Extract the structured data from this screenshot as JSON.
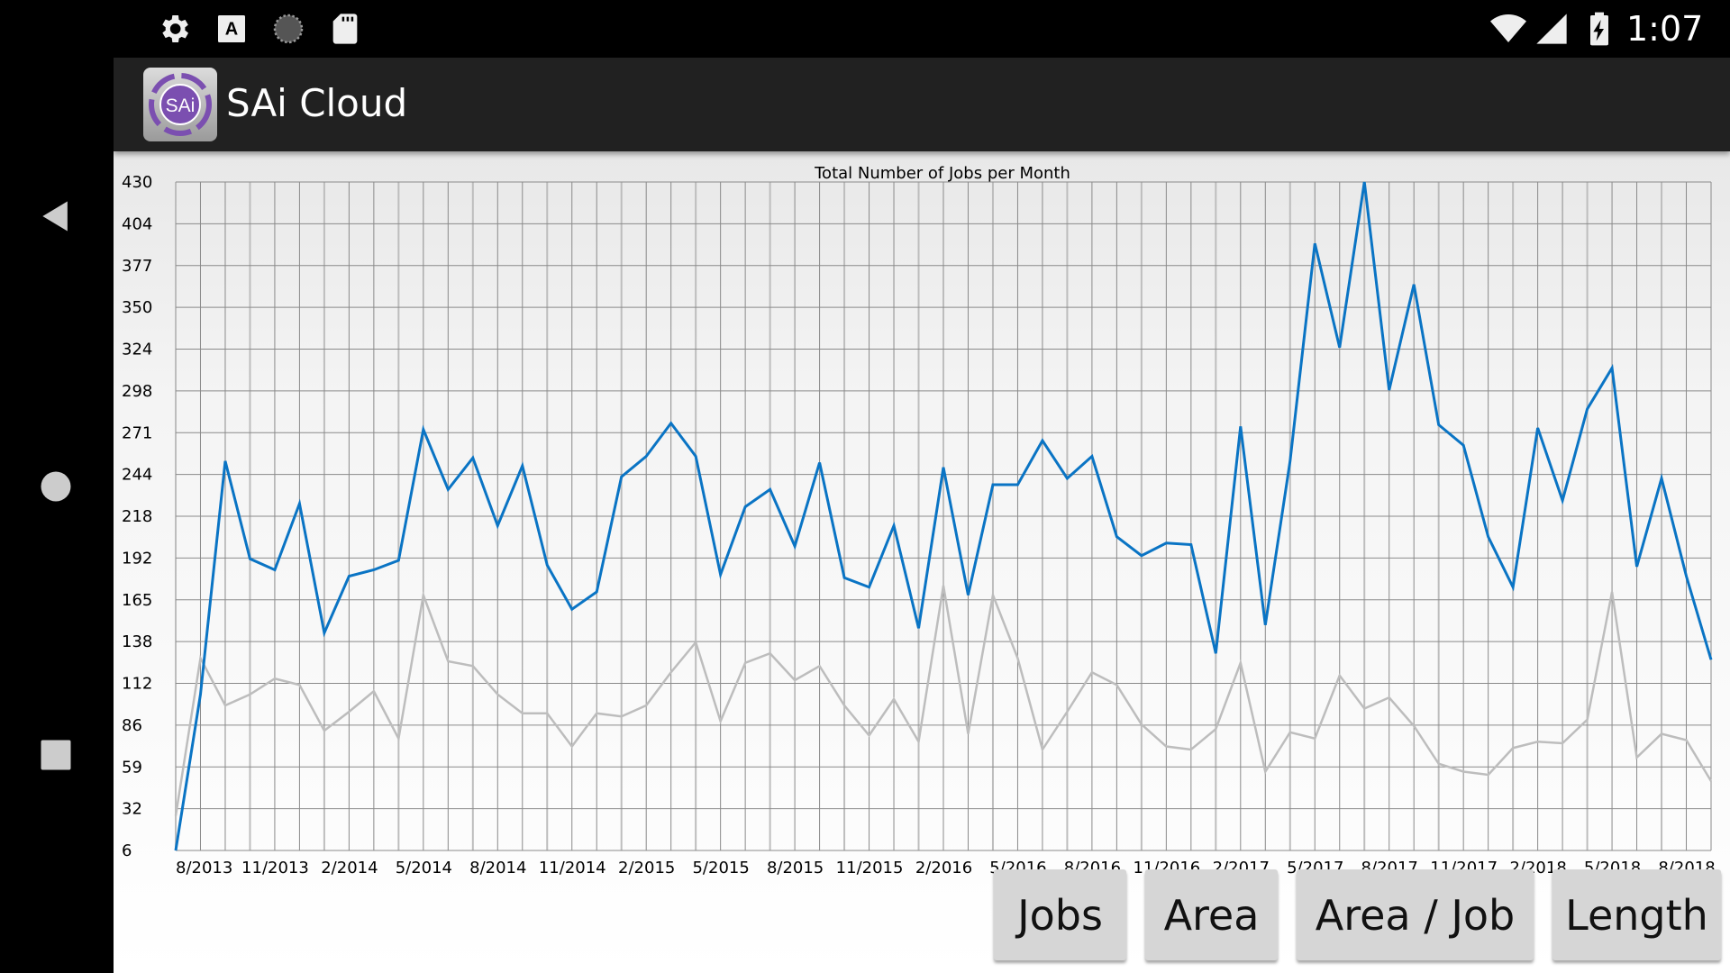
{
  "status_bar": {
    "left_icons": [
      "gear-icon",
      "font-a-icon",
      "sync-circle-icon",
      "sd-card-icon"
    ],
    "right_icons": [
      "wifi-icon",
      "cell-signal-icon",
      "battery-charging-icon"
    ],
    "time": "1:07"
  },
  "nav_bar": {
    "icons": [
      "back-icon",
      "home-icon",
      "recents-icon"
    ]
  },
  "app_bar": {
    "title": "SAi Cloud",
    "logo_text": "SAi"
  },
  "buttons": {
    "jobs": "Jobs",
    "area": "Area",
    "area_per_job": "Area / Job",
    "length": "Length"
  },
  "colors": {
    "series_primary": "#0a74c4",
    "series_secondary": "#bdbdbd",
    "appbar": "#212121",
    "button": "#d6d6d6"
  },
  "chart_data": {
    "type": "line",
    "title": "Total Number of Jobs per Month",
    "ylim": [
      6,
      430
    ],
    "y_ticks": [
      "6",
      "32",
      "59",
      "86",
      "112",
      "138",
      "165",
      "192",
      "218",
      "244",
      "271",
      "298",
      "324",
      "350",
      "377",
      "404",
      "430"
    ],
    "grid": true,
    "x_start": "8/2013",
    "x_end": "10/2018",
    "x_tick_labels": [
      "8/2013",
      "11/2013",
      "2/2014",
      "5/2014",
      "8/2014",
      "11/2014",
      "2/2015",
      "5/2015",
      "8/2015",
      "11/2015",
      "2/2016",
      "5/2016",
      "8/2016",
      "11/2016",
      "2/2017",
      "5/2017",
      "8/2017",
      "11/2017",
      "2/2018",
      "5/2018",
      "8/2018"
    ],
    "series": [
      {
        "values": [
          6,
          105,
          253,
          191,
          184,
          226,
          144,
          180,
          184,
          190,
          273,
          235,
          255,
          212,
          250,
          187,
          159,
          170,
          243,
          256,
          277,
          256,
          181,
          224,
          235,
          199,
          252,
          179,
          173,
          212,
          147,
          249,
          168,
          238,
          238,
          266,
          242,
          256,
          205,
          193,
          201,
          200,
          131,
          275,
          149,
          253,
          391,
          325,
          430,
          298,
          365,
          276,
          263,
          205,
          173,
          274,
          228,
          286,
          312,
          186,
          242,
          180,
          127
        ]
      },
      {
        "values": [
          28,
          128,
          98,
          105,
          115,
          111,
          82,
          94,
          107,
          77,
          168,
          126,
          123,
          105,
          93,
          93,
          72,
          93,
          91,
          98,
          119,
          138,
          88,
          125,
          131,
          114,
          123,
          98,
          79,
          102,
          75,
          174,
          80,
          168,
          128,
          70,
          94,
          119,
          111,
          86,
          72,
          70,
          83,
          125,
          56,
          81,
          77,
          117,
          96,
          103,
          85,
          61,
          56,
          54,
          71,
          75,
          74,
          89,
          170,
          65,
          80,
          76,
          50
        ]
      }
    ]
  }
}
